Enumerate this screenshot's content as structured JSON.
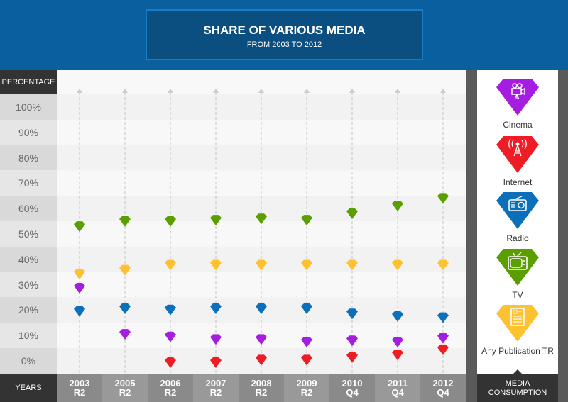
{
  "header": {
    "title": "SHARE OF VARIOUS MEDIA",
    "subtitle": "FROM 2003 TO 2012"
  },
  "axis": {
    "y_title": "PERCENTAGE",
    "x_title": "YEARS",
    "legend_title": "MEDIA CONSUMPTION"
  },
  "chart_data": {
    "type": "scatter",
    "title": "SHARE OF VARIOUS MEDIA",
    "subtitle": "FROM 2003 TO 2012",
    "xlabel": "YEARS",
    "ylabel": "PERCENTAGE",
    "ylim": [
      0,
      100
    ],
    "y_ticks": [
      "100%",
      "90%",
      "80%",
      "70%",
      "60%",
      "50%",
      "40%",
      "30%",
      "20%",
      "10%",
      "0%"
    ],
    "categories": [
      [
        "2003",
        "R2"
      ],
      [
        "2005",
        "R2"
      ],
      [
        "2006",
        "R2"
      ],
      [
        "2007",
        "R2"
      ],
      [
        "2008",
        "R2"
      ],
      [
        "2009",
        "R2"
      ],
      [
        "2010",
        "Q4"
      ],
      [
        "2011",
        "Q4"
      ],
      [
        "2012",
        "Q4"
      ]
    ],
    "series": [
      {
        "name": "Cinema",
        "color": "#a51de0",
        "icon": "film-camera-icon",
        "values": [
          29,
          11,
          10,
          9,
          9,
          8,
          8.5,
          8,
          9.5
        ]
      },
      {
        "name": "Internet",
        "color": "#ee1c25",
        "icon": "antenna-tower-icon",
        "values": [
          null,
          null,
          0,
          0,
          1,
          1,
          2,
          3,
          5
        ]
      },
      {
        "name": "Radio",
        "color": "#0b6fba",
        "icon": "radio-icon",
        "values": [
          20,
          21,
          20.5,
          21,
          21,
          21,
          19,
          18,
          17.5
        ]
      },
      {
        "name": "TV",
        "color": "#5a9e00",
        "icon": "tv-icon",
        "values": [
          53,
          55,
          55,
          55.5,
          56,
          55.5,
          58,
          61,
          64
        ]
      },
      {
        "name": "Any Publication TR",
        "color": "#fdc131",
        "icon": "newspaper-icon",
        "values": [
          34.5,
          36,
          38,
          38,
          38,
          38,
          38,
          38,
          38
        ]
      }
    ],
    "legend": "right"
  }
}
